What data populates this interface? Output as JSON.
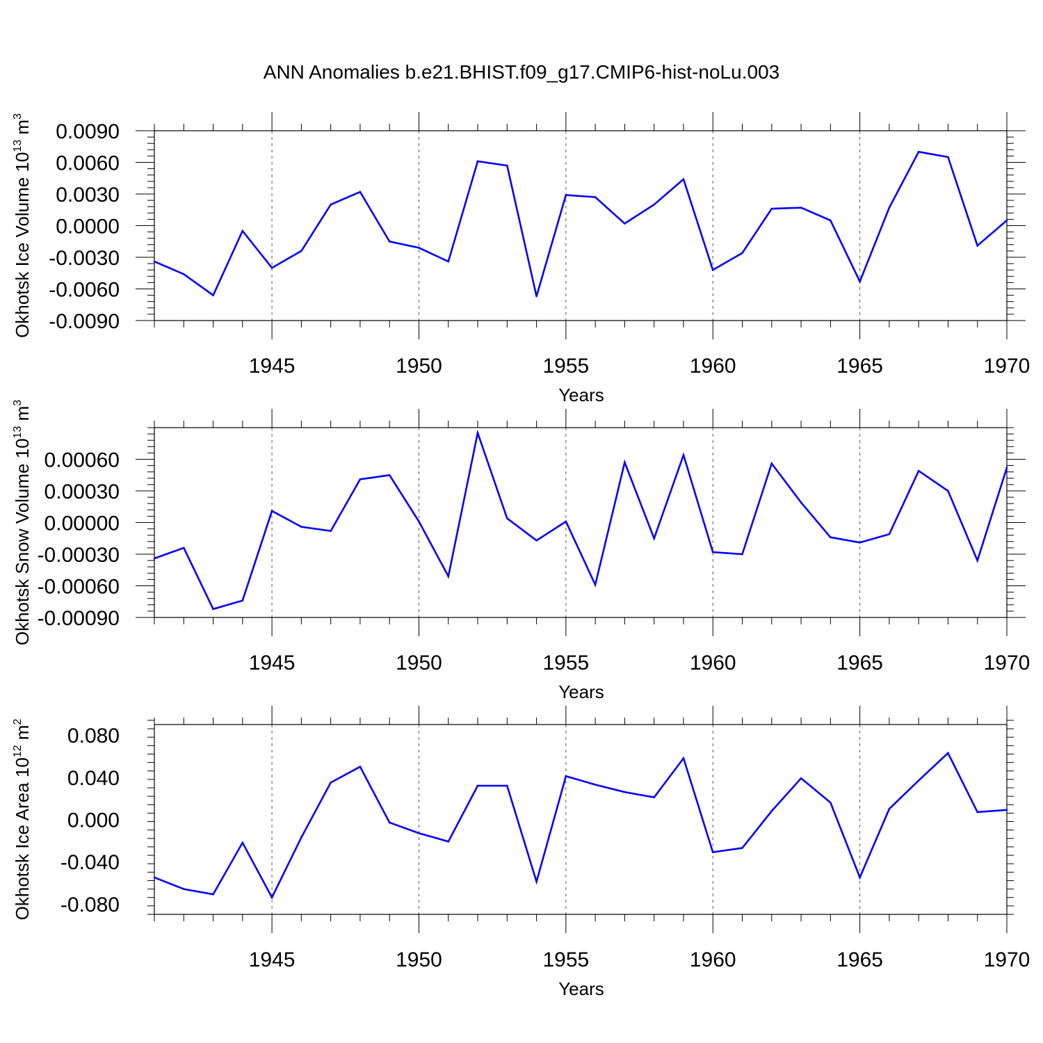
{
  "title": "ANN Anomalies b.e21.BHIST.f09_g17.CMIP6-hist-noLu.003",
  "line_color": "#0000ff",
  "chart_data": [
    {
      "type": "line",
      "ylabel": "Okhotsk Ice Volume 10",
      "ylabel_exp": "13",
      "ylabel_unit": " m",
      "ylabel_unit_exp": "3",
      "xlabel": "Years",
      "xlim": [
        1941,
        1970
      ],
      "ylim": [
        -0.009,
        0.009
      ],
      "yticks": [
        "-0.0090",
        "-0.0060",
        "-0.0030",
        "0.0000",
        "0.0030",
        "0.0060",
        "0.0090"
      ],
      "yticks_values": [
        -0.009,
        -0.006,
        -0.003,
        0.0,
        0.003,
        0.006,
        0.009
      ],
      "xticks": [
        "1945",
        "1950",
        "1955",
        "1960",
        "1965",
        "1970"
      ],
      "xticks_values": [
        1945,
        1950,
        1955,
        1960,
        1965,
        1970
      ],
      "x": [
        1941,
        1942,
        1943,
        1944,
        1945,
        1946,
        1947,
        1948,
        1949,
        1950,
        1951,
        1952,
        1953,
        1954,
        1955,
        1956,
        1957,
        1958,
        1959,
        1960,
        1961,
        1962,
        1963,
        1964,
        1965,
        1966,
        1967,
        1968,
        1969,
        1970
      ],
      "values": [
        -0.0034,
        -0.0046,
        -0.0066,
        -0.0005,
        -0.004,
        -0.0024,
        0.002,
        0.0032,
        -0.0015,
        -0.0021,
        -0.0034,
        0.0061,
        0.0057,
        -0.0067,
        0.0029,
        0.0027,
        0.0002,
        0.002,
        0.0044,
        -0.0042,
        -0.0026,
        0.0016,
        0.0017,
        0.0005,
        -0.0053,
        0.0017,
        0.007,
        0.0065,
        -0.0019,
        0.0005
      ]
    },
    {
      "type": "line",
      "ylabel": "Okhotsk Snow Volume 10",
      "ylabel_exp": "13",
      "ylabel_unit": " m",
      "ylabel_unit_exp": "3",
      "xlabel": "Years",
      "xlim": [
        1941,
        1970
      ],
      "ylim": [
        -0.0009,
        0.0009
      ],
      "yticks": [
        "-0.00090",
        "-0.00060",
        "-0.00030",
        "0.00000",
        "0.00030",
        "0.00060"
      ],
      "yticks_values": [
        -0.0009,
        -0.0006,
        -0.0003,
        0.0,
        0.0003,
        0.0006
      ],
      "xticks": [
        "1945",
        "1950",
        "1955",
        "1960",
        "1965",
        "1970"
      ],
      "xticks_values": [
        1945,
        1950,
        1955,
        1960,
        1965,
        1970
      ],
      "x": [
        1941,
        1942,
        1943,
        1944,
        1945,
        1946,
        1947,
        1948,
        1949,
        1950,
        1951,
        1952,
        1953,
        1954,
        1955,
        1956,
        1957,
        1958,
        1959,
        1960,
        1961,
        1962,
        1963,
        1964,
        1965,
        1966,
        1967,
        1968,
        1969,
        1970
      ],
      "values": [
        -0.00034,
        -0.00024,
        -0.00082,
        -0.00074,
        0.00011,
        -4e-05,
        -8e-05,
        0.00041,
        0.00045,
        1e-05,
        -0.00051,
        0.00085,
        4e-05,
        -0.00017,
        1e-05,
        -0.00059,
        0.00057,
        -0.00015,
        0.00064,
        -0.00028,
        -0.0003,
        0.00056,
        0.00019,
        -0.00014,
        -0.00019,
        -0.00011,
        0.00049,
        0.0003,
        -0.00036,
        0.00052
      ]
    },
    {
      "type": "line",
      "ylabel": "Okhotsk Ice Area 10",
      "ylabel_exp": "12",
      "ylabel_unit": " m",
      "ylabel_unit_exp": "2",
      "xlabel": "Years",
      "xlim": [
        1941,
        1970
      ],
      "ylim": [
        -0.09,
        0.09
      ],
      "yticks": [
        "-0.080",
        "-0.040",
        "0.000",
        "0.040",
        "0.080"
      ],
      "yticks_values": [
        -0.08,
        -0.04,
        0.0,
        0.04,
        0.08
      ],
      "xticks": [
        "1945",
        "1950",
        "1955",
        "1960",
        "1965",
        "1970"
      ],
      "xticks_values": [
        1945,
        1950,
        1955,
        1960,
        1965,
        1970
      ],
      "x": [
        1941,
        1942,
        1943,
        1944,
        1945,
        1946,
        1947,
        1948,
        1949,
        1950,
        1951,
        1952,
        1953,
        1954,
        1955,
        1956,
        1957,
        1958,
        1959,
        1960,
        1961,
        1962,
        1963,
        1964,
        1965,
        1966,
        1967,
        1968,
        1969,
        1970
      ],
      "values": [
        -0.055,
        -0.066,
        -0.071,
        -0.022,
        -0.074,
        -0.017,
        0.035,
        0.05,
        -0.003,
        -0.013,
        -0.021,
        0.032,
        0.032,
        -0.059,
        0.041,
        0.033,
        0.026,
        0.021,
        0.058,
        -0.031,
        -0.027,
        0.008,
        0.039,
        0.016,
        -0.055,
        0.01,
        0.037,
        0.063,
        0.007,
        0.009
      ]
    }
  ]
}
